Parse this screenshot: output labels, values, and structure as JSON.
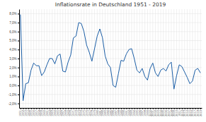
{
  "chart_data": {
    "type": "line",
    "title": "Inflationsrate in Deutschland 1951 - 2019",
    "x": [
      1951,
      1952,
      1953,
      1954,
      1955,
      1956,
      1957,
      1958,
      1959,
      1960,
      1961,
      1962,
      1963,
      1964,
      1965,
      1966,
      1967,
      1968,
      1969,
      1970,
      1971,
      1972,
      1973,
      1974,
      1975,
      1976,
      1977,
      1978,
      1979,
      1980,
      1981,
      1982,
      1983,
      1984,
      1985,
      1986,
      1987,
      1988,
      1989,
      1990,
      1991,
      1992,
      1993,
      1994,
      1995,
      1996,
      1997,
      1998,
      1999,
      2000,
      2001,
      2002,
      2003,
      2004,
      2005,
      2006,
      2007,
      2008,
      2009,
      2010,
      2011,
      2012,
      2013,
      2014,
      2015,
      2016,
      2017,
      2018,
      2019
    ],
    "values": [
      7.9,
      -1.7,
      0.2,
      0.3,
      1.7,
      2.5,
      2.2,
      2.2,
      1.1,
      1.5,
      2.3,
      3.0,
      3.0,
      2.4,
      3.3,
      3.5,
      1.6,
      1.5,
      2.6,
      3.4,
      5.3,
      5.5,
      7.0,
      6.9,
      6.0,
      4.5,
      3.7,
      2.7,
      4.1,
      5.5,
      6.3,
      5.3,
      3.3,
      2.4,
      2.0,
      0.0,
      -0.2,
      1.3,
      2.8,
      2.7,
      3.5,
      4.0,
      4.1,
      3.0,
      1.7,
      1.4,
      1.9,
      1.0,
      0.6,
      1.9,
      2.5,
      1.4,
      1.0,
      1.7,
      1.9,
      1.6,
      2.3,
      2.6,
      -0.4,
      1.1,
      2.3,
      2.1,
      1.5,
      0.9,
      0.2,
      0.5,
      1.7,
      1.9,
      1.4
    ],
    "color": "#1b5ea6",
    "xlim": [
      1950.5,
      2019.5
    ],
    "xticks": [
      1951,
      1952,
      1953,
      1954,
      1955,
      1956,
      1957,
      1958,
      1959,
      1960,
      1961,
      1962,
      1963,
      1964,
      1965,
      1966,
      1967,
      1968,
      1969,
      1970,
      1971,
      1972,
      1973,
      1974,
      1975,
      1976,
      1977,
      1978,
      1979,
      1980,
      1981,
      1982,
      1983,
      1984,
      1985,
      1986,
      1987,
      1988,
      1989,
      1990,
      1991,
      1992,
      1993,
      1994,
      1995,
      1996,
      1997,
      1998,
      1999,
      2000,
      2001,
      2002,
      2003,
      2004,
      2005,
      2006,
      2007,
      2008,
      2009,
      2010,
      2011,
      2012,
      2013,
      2014,
      2015,
      2016,
      2017,
      2018,
      2019
    ],
    "ylim": [
      -2.5,
      8.5
    ],
    "yticks": [
      {
        "value": -2.0,
        "label": "-2,0%"
      },
      {
        "value": -1.0,
        "label": "-1,0%"
      },
      {
        "value": 0.0,
        "label": "0,0%"
      },
      {
        "value": 1.0,
        "label": "1,0%"
      },
      {
        "value": 2.0,
        "label": "2,0%"
      },
      {
        "value": 3.0,
        "label": "3,0%"
      },
      {
        "value": 4.0,
        "label": "4,0%"
      },
      {
        "value": 5.0,
        "label": "5,0%"
      },
      {
        "value": 6.0,
        "label": "6,0%"
      },
      {
        "value": 7.0,
        "label": "7,0%"
      },
      {
        "value": 8.0,
        "label": "8,0%"
      }
    ],
    "grid": true
  }
}
